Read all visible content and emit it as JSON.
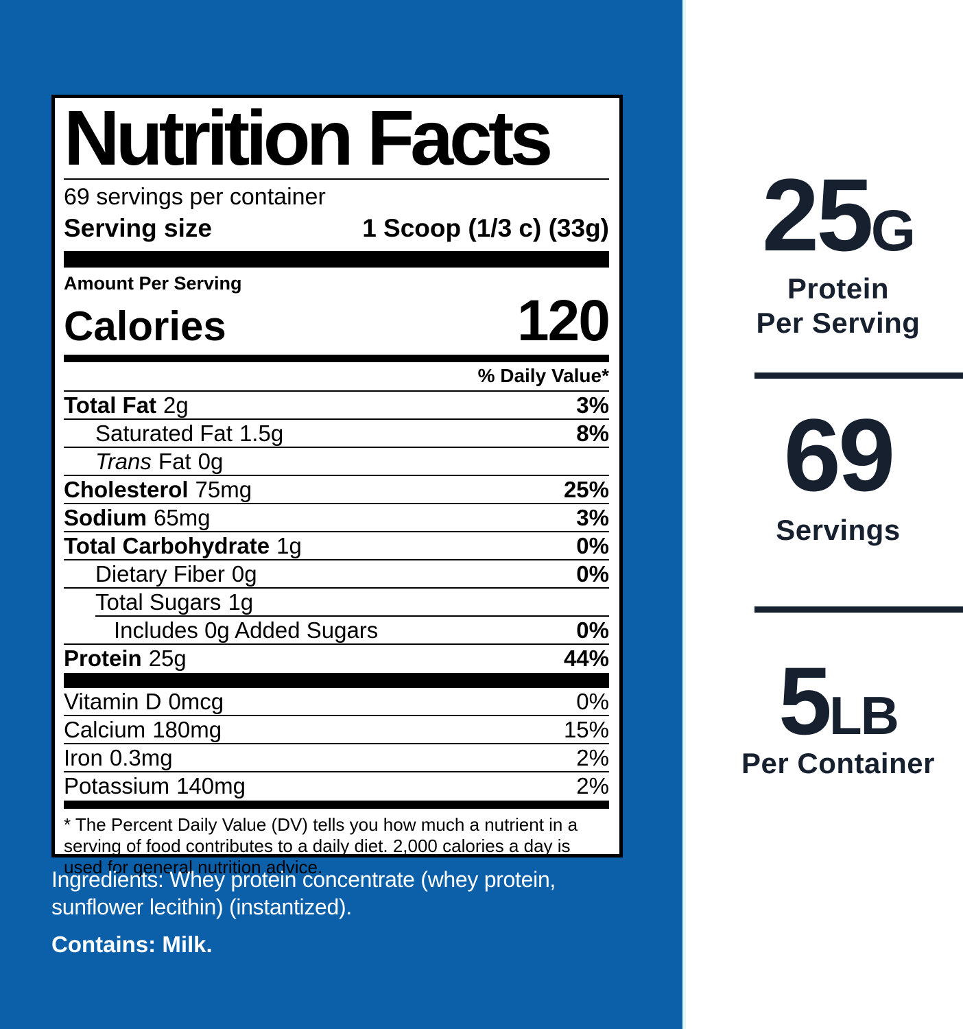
{
  "colors": {
    "background_blue": "#0b60a9",
    "navy_text": "#16202e",
    "label_black": "#000000"
  },
  "label": {
    "title": "Nutrition Facts",
    "servings_per_container": "69 servings per container",
    "serving_size_label": "Serving size",
    "serving_size_value": "1 Scoop (1/3 c) (33g)",
    "amount_per_serving": "Amount Per Serving",
    "calories_label": "Calories",
    "calories_value": "120",
    "daily_value_header": "% Daily Value*",
    "nutrients": [
      {
        "name": "Total Fat",
        "amount": "2g",
        "dv": "3%"
      },
      {
        "name": "Saturated Fat",
        "amount": "1.5g",
        "dv": "8%"
      },
      {
        "name_italic": "Trans",
        "name": "Fat",
        "amount": "0g",
        "dv": ""
      },
      {
        "name": "Cholesterol",
        "amount": "75mg",
        "dv": "25%"
      },
      {
        "name": "Sodium",
        "amount": "65mg",
        "dv": "3%"
      },
      {
        "name": "Total Carbohydrate",
        "amount": "1g",
        "dv": "0%"
      },
      {
        "name": "Dietary Fiber",
        "amount": "0g",
        "dv": "0%"
      },
      {
        "name": "Total Sugars",
        "amount": "1g",
        "dv": ""
      },
      {
        "name": "Includes 0g Added Sugars",
        "amount": "",
        "dv": "0%"
      },
      {
        "name": "Protein",
        "amount": "25g",
        "dv": "44%"
      }
    ],
    "vitamins": [
      {
        "name": "Vitamin D",
        "amount": "0mcg",
        "dv": "0%"
      },
      {
        "name": "Calcium",
        "amount": "180mg",
        "dv": "15%"
      },
      {
        "name": "Iron",
        "amount": "0.3mg",
        "dv": "2%"
      },
      {
        "name": "Potassium",
        "amount": "140mg",
        "dv": "2%"
      }
    ],
    "footnote": "* The Percent Daily Value (DV) tells you how much a nutrient in a serving of food contributes to a daily diet. 2,000 calories a day is used for general nutrition advice."
  },
  "ingredients": {
    "text": "Ingredients: Whey protein concentrate (whey protein, sunflower lecithin) (instantized).",
    "contains": "Contains: Milk."
  },
  "stats": [
    {
      "value": "25",
      "unit": "G",
      "caption": "Protein\nPer Serving"
    },
    {
      "value": "69",
      "unit": "",
      "caption": "Servings"
    },
    {
      "value": "5",
      "unit": "LB",
      "caption": "Per Container"
    }
  ]
}
